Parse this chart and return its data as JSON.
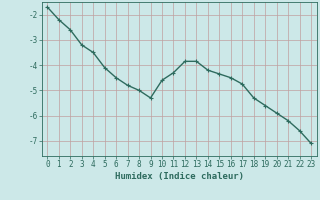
{
  "x": [
    0,
    1,
    2,
    3,
    4,
    5,
    6,
    7,
    8,
    9,
    10,
    11,
    12,
    13,
    14,
    15,
    16,
    17,
    18,
    19,
    20,
    21,
    22,
    23
  ],
  "y": [
    -1.7,
    -2.2,
    -2.6,
    -3.2,
    -3.5,
    -4.1,
    -4.5,
    -4.8,
    -5.0,
    -5.3,
    -4.6,
    -4.3,
    -3.85,
    -3.85,
    -4.2,
    -4.35,
    -4.5,
    -4.75,
    -5.3,
    -5.6,
    -5.9,
    -6.2,
    -6.6,
    -7.1
  ],
  "line_color": "#2e6b5e",
  "marker": "+",
  "markersize": 3,
  "linewidth": 1.0,
  "bg_color": "#cce8e8",
  "grid_color": "#c0a0a0",
  "xlabel": "Humidex (Indice chaleur)",
  "xlim": [
    -0.5,
    23.5
  ],
  "ylim": [
    -7.6,
    -1.5
  ],
  "yticks": [
    -7,
    -6,
    -5,
    -4,
    -3,
    -2
  ],
  "xticks": [
    0,
    1,
    2,
    3,
    4,
    5,
    6,
    7,
    8,
    9,
    10,
    11,
    12,
    13,
    14,
    15,
    16,
    17,
    18,
    19,
    20,
    21,
    22,
    23
  ],
  "tick_color": "#2e6b5e",
  "label_color": "#2e6b5e",
  "axis_color": "#2e6b5e",
  "xlabel_fontsize": 6.5,
  "tick_fontsize": 5.5
}
